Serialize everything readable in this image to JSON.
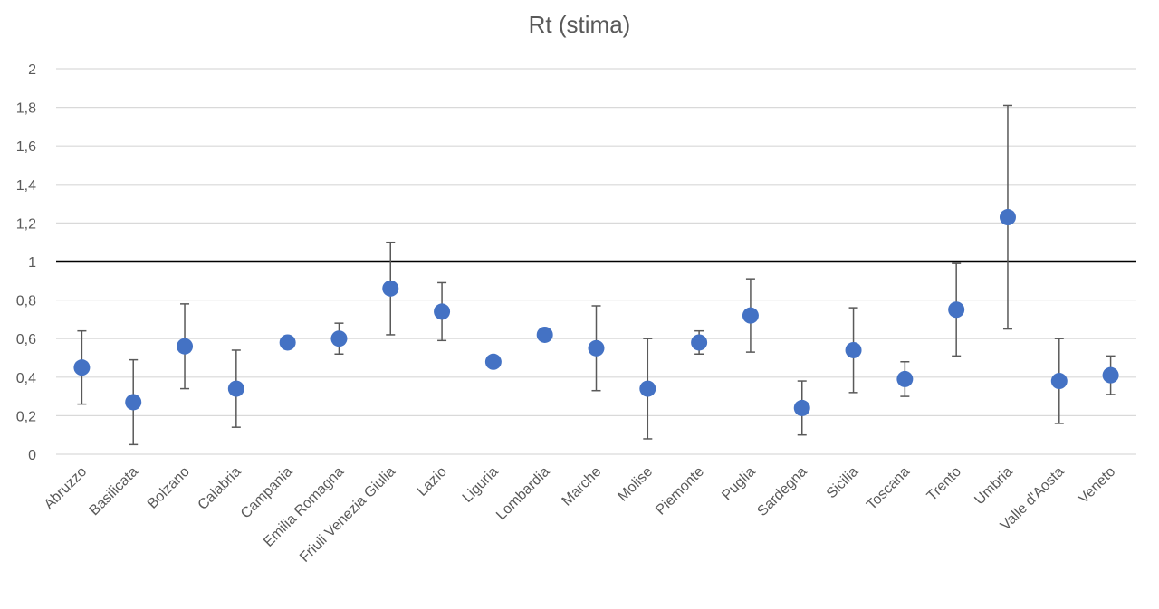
{
  "chart_data": {
    "type": "scatter",
    "title": "Rt (stima)",
    "xlabel": "",
    "ylabel": "",
    "ylim": [
      0,
      2
    ],
    "yticks": [
      0,
      0.2,
      0.4,
      0.6,
      0.8,
      1,
      1.2,
      1.4,
      1.6,
      1.8,
      2
    ],
    "ytick_labels": [
      "0",
      "0,2",
      "0,4",
      "0,6",
      "0,8",
      "1",
      "1,2",
      "1,4",
      "1,6",
      "1,8",
      "2"
    ],
    "grid": true,
    "reference_line": 1,
    "categories": [
      "Abruzzo",
      "Basilicata",
      "Bolzano",
      "Calabria",
      "Campania",
      "Emilia Romagna",
      "Friuli Venezia Giulia",
      "Lazio",
      "Liguria",
      "Lombardia",
      "Marche",
      "Molise",
      "Piemonte",
      "Puglia",
      "Sardegna",
      "Sicilia",
      "Toscana",
      "Trento",
      "Umbria",
      "Valle d'Aosta",
      "Veneto"
    ],
    "values": [
      0.45,
      0.27,
      0.56,
      0.34,
      0.58,
      0.6,
      0.86,
      0.74,
      0.48,
      0.62,
      0.55,
      0.34,
      0.58,
      0.72,
      0.24,
      0.54,
      0.39,
      0.75,
      1.23,
      0.38,
      0.41
    ],
    "lower": [
      0.26,
      0.05,
      0.34,
      0.14,
      null,
      0.52,
      0.62,
      0.59,
      null,
      null,
      0.33,
      0.08,
      0.52,
      0.53,
      0.1,
      0.32,
      0.3,
      0.51,
      0.65,
      0.16,
      0.31
    ],
    "upper": [
      0.64,
      0.49,
      0.78,
      0.54,
      null,
      0.68,
      1.1,
      0.89,
      null,
      null,
      0.77,
      0.6,
      0.64,
      0.91,
      0.38,
      0.76,
      0.48,
      0.99,
      1.81,
      0.6,
      0.51
    ],
    "colors": {
      "point": "#4472C4",
      "errorbar": "#595959",
      "reference": "#000000",
      "grid": "#D9D9D9",
      "text": "#595959"
    }
  }
}
